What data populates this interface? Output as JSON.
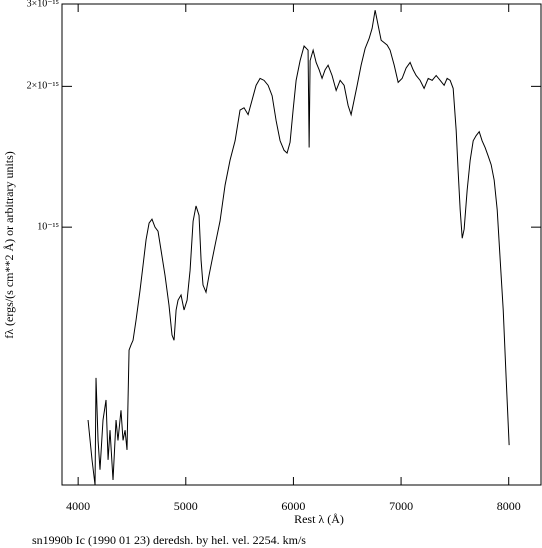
{
  "chart_data": {
    "type": "line",
    "xlabel": "Rest λ (Å)",
    "ylabel": "fλ (ergs/(s cm**2 Å) or arbitrary units)",
    "caption": "sn1990b Ic (1990 01 23) deredsh. by hel. vel.  2254. km/s",
    "color": "#000000",
    "ylog": true,
    "xlim": [
      3850,
      8300
    ],
    "xticks": [
      4000,
      5000,
      6000,
      7000,
      8000
    ],
    "ylim": [
      2.81e-16,
      3e-15
    ],
    "yticks": [
      {
        "value": 1e-15,
        "label": "10⁻¹⁵"
      },
      {
        "value": 2e-15,
        "label": "2×10⁻¹⁵"
      },
      {
        "value": 3e-15,
        "label": "3×10⁻¹⁵"
      }
    ],
    "x": [
      4092,
      4129,
      4157,
      4166,
      4185,
      4203,
      4231,
      4259,
      4278,
      4296,
      4324,
      4352,
      4370,
      4398,
      4417,
      4436,
      4454,
      4473,
      4491,
      4510,
      4538,
      4575,
      4603,
      4631,
      4659,
      4686,
      4714,
      4742,
      4770,
      4807,
      4844,
      4872,
      4891,
      4910,
      4928,
      4956,
      4984,
      5012,
      5040,
      5068,
      5095,
      5123,
      5142,
      5160,
      5188,
      5216,
      5244,
      5272,
      5318,
      5365,
      5411,
      5458,
      5504,
      5541,
      5579,
      5616,
      5653,
      5690,
      5727,
      5765,
      5802,
      5839,
      5876,
      5913,
      5941,
      5969,
      5997,
      6025,
      6062,
      6099,
      6136,
      6146,
      6155,
      6183,
      6211,
      6239,
      6266,
      6294,
      6322,
      6359,
      6397,
      6434,
      6471,
      6508,
      6536,
      6564,
      6592,
      6629,
      6666,
      6703,
      6731,
      6759,
      6787,
      6815,
      6843,
      6871,
      6898,
      6936,
      6973,
      7010,
      7047,
      7084,
      7112,
      7140,
      7177,
      7214,
      7252,
      7289,
      7326,
      7363,
      7400,
      7428,
      7456,
      7484,
      7512,
      7530,
      7549,
      7568,
      7586,
      7614,
      7642,
      7670,
      7698,
      7726,
      7753,
      7781,
      7809,
      7837,
      7865,
      7893,
      7921,
      7949,
      7977,
      8004
    ],
    "values": [
      3.87e-16,
      3.18e-16,
      2.81e-16,
      4.76e-16,
      3.5e-16,
      3.03e-16,
      3.87e-16,
      4.27e-16,
      3.18e-16,
      3.68e-16,
      2.88e-16,
      3.87e-16,
      3.5e-16,
      4.06e-16,
      3.5e-16,
      3.68e-16,
      3.34e-16,
      5.46e-16,
      5.6e-16,
      5.73e-16,
      6.33e-16,
      7.33e-16,
      8.29e-16,
      9.4e-16,
      1.02e-15,
      1.04e-15,
      1e-15,
      9.8e-16,
      8.93e-16,
      7.89e-16,
      6.81e-16,
      5.88e-16,
      5.73e-16,
      6.65e-16,
      6.98e-16,
      7.16e-16,
      6.65e-16,
      6.98e-16,
      8.09e-16,
      1.03e-15,
      1.11e-15,
      1.06e-15,
      8.5e-16,
      7.52e-16,
      7.26e-16,
      7.89e-16,
      8.5e-16,
      9.15e-16,
      1.03e-15,
      1.23e-15,
      1.39e-15,
      1.53e-15,
      1.78e-15,
      1.8e-15,
      1.74e-15,
      1.87e-15,
      2.01e-15,
      2.08e-15,
      2.06e-15,
      2.01e-15,
      1.91e-15,
      1.69e-15,
      1.53e-15,
      1.46e-15,
      1.44e-15,
      1.52e-15,
      1.78e-15,
      2.06e-15,
      2.27e-15,
      2.44e-15,
      2.39e-15,
      1.48e-15,
      2.27e-15,
      2.39e-15,
      2.25e-15,
      2.17e-15,
      2.08e-15,
      2.17e-15,
      2.22e-15,
      2.11e-15,
      1.96e-15,
      2.06e-15,
      2.01e-15,
      1.82e-15,
      1.74e-15,
      1.87e-15,
      2.01e-15,
      2.22e-15,
      2.41e-15,
      2.53e-15,
      2.66e-15,
      2.91e-15,
      2.7e-15,
      2.51e-15,
      2.48e-15,
      2.45e-15,
      2.39e-15,
      2.22e-15,
      2.04e-15,
      2.08e-15,
      2.19e-15,
      2.25e-15,
      2.17e-15,
      2.11e-15,
      2.06e-15,
      1.98e-15,
      2.08e-15,
      2.06e-15,
      2.11e-15,
      2.06e-15,
      2.01e-15,
      2.08e-15,
      2.06e-15,
      1.98e-15,
      1.61e-15,
      1.32e-15,
      1.09e-15,
      9.47e-16,
      9.9e-16,
      1.2e-15,
      1.39e-15,
      1.53e-15,
      1.57e-15,
      1.6e-15,
      1.53e-15,
      1.48e-15,
      1.42e-15,
      1.36e-15,
      1.26e-15,
      1.09e-15,
      8.5e-16,
      6.65e-16,
      4.71e-16,
      3.42e-16
    ]
  }
}
